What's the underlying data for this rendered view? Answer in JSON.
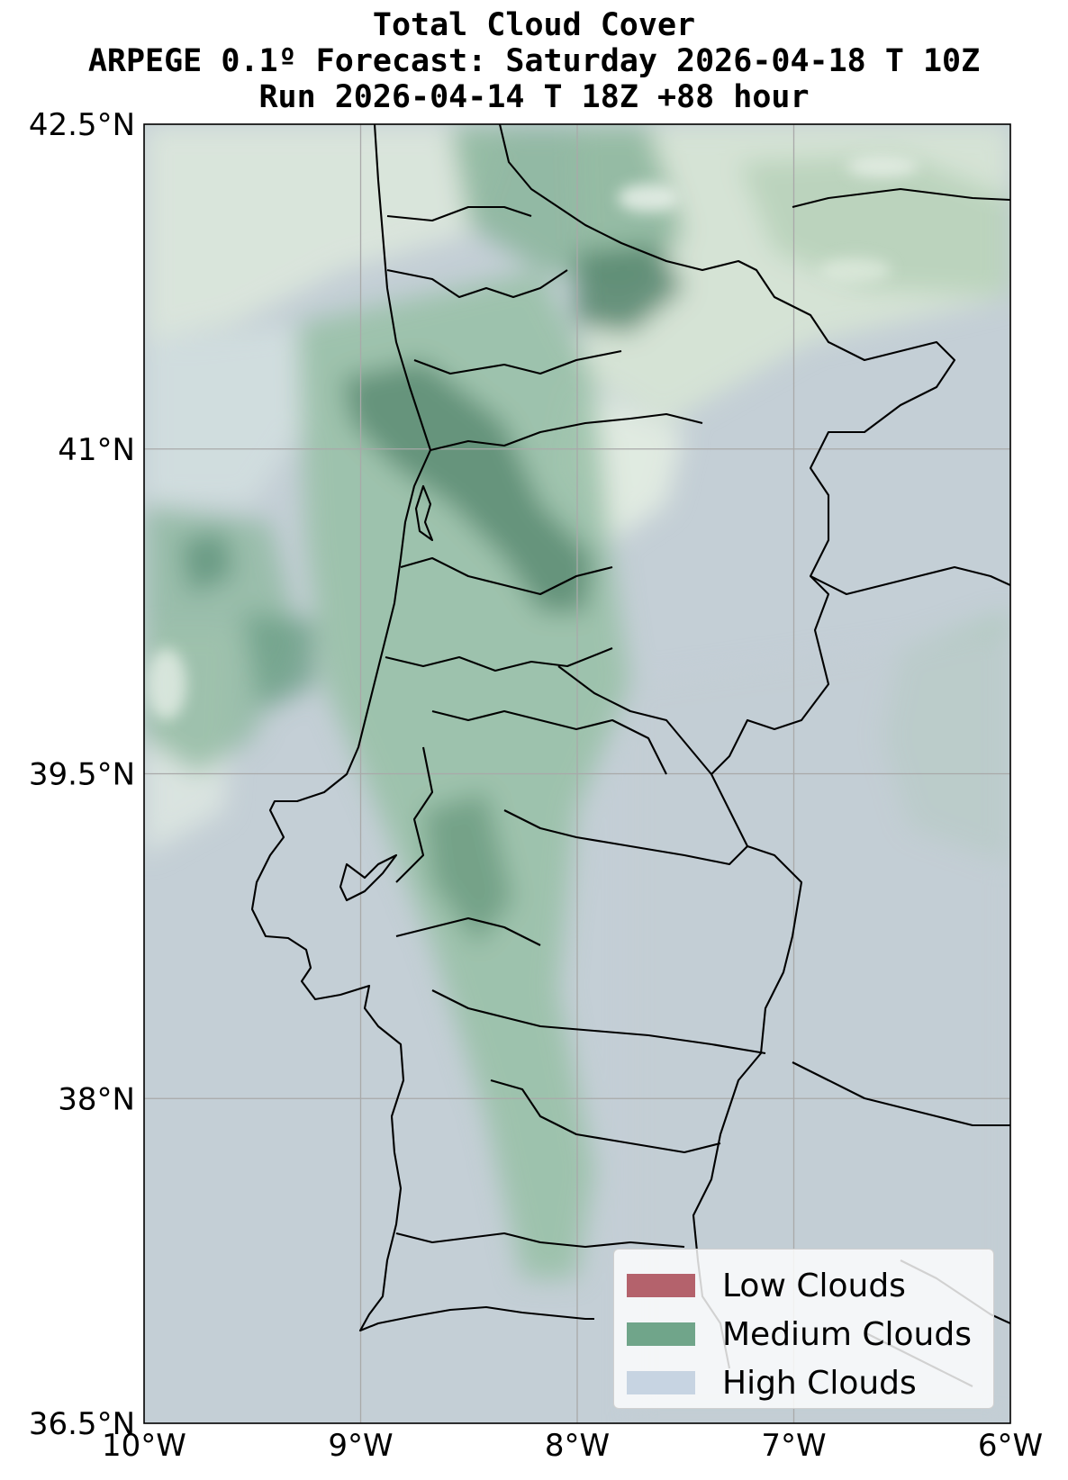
{
  "title": {
    "line1": "Total Cloud Cover",
    "line2": "ARPEGE 0.1º Forecast: Saturday 2026-04-18 T 10Z",
    "line3": "Run 2026-04-14 T 18Z +88 hour"
  },
  "map": {
    "lon_range": [
      -10,
      -6
    ],
    "lat_range": [
      36.5,
      42.5
    ],
    "lon_ticks": [
      {
        "value": -10,
        "label": "10°W"
      },
      {
        "value": -9,
        "label": "9°W"
      },
      {
        "value": -8,
        "label": "8°W"
      },
      {
        "value": -7,
        "label": "7°W"
      },
      {
        "value": -6,
        "label": "6°W"
      }
    ],
    "lat_ticks": [
      {
        "value": 42.5,
        "label": "42.5°N"
      },
      {
        "value": 41,
        "label": "41°N"
      },
      {
        "value": 39.5,
        "label": "39.5°N"
      },
      {
        "value": 38,
        "label": "38°N"
      },
      {
        "value": 36.5,
        "label": "36.5°N"
      }
    ],
    "gridlines": true,
    "colors": {
      "background": "#c4cfd6",
      "high_clouds": "#c7d4e2",
      "medium_clouds": "#70a58a",
      "low_clouds": "#b4626c",
      "boundaries": "#000000"
    }
  },
  "legend": {
    "placement": "lower-right",
    "items": [
      {
        "label": "Low Clouds",
        "color": "#b4626c"
      },
      {
        "label": "Medium Clouds",
        "color": "#70a58a"
      },
      {
        "label": "High Clouds",
        "color": "#c7d4e2"
      }
    ]
  }
}
